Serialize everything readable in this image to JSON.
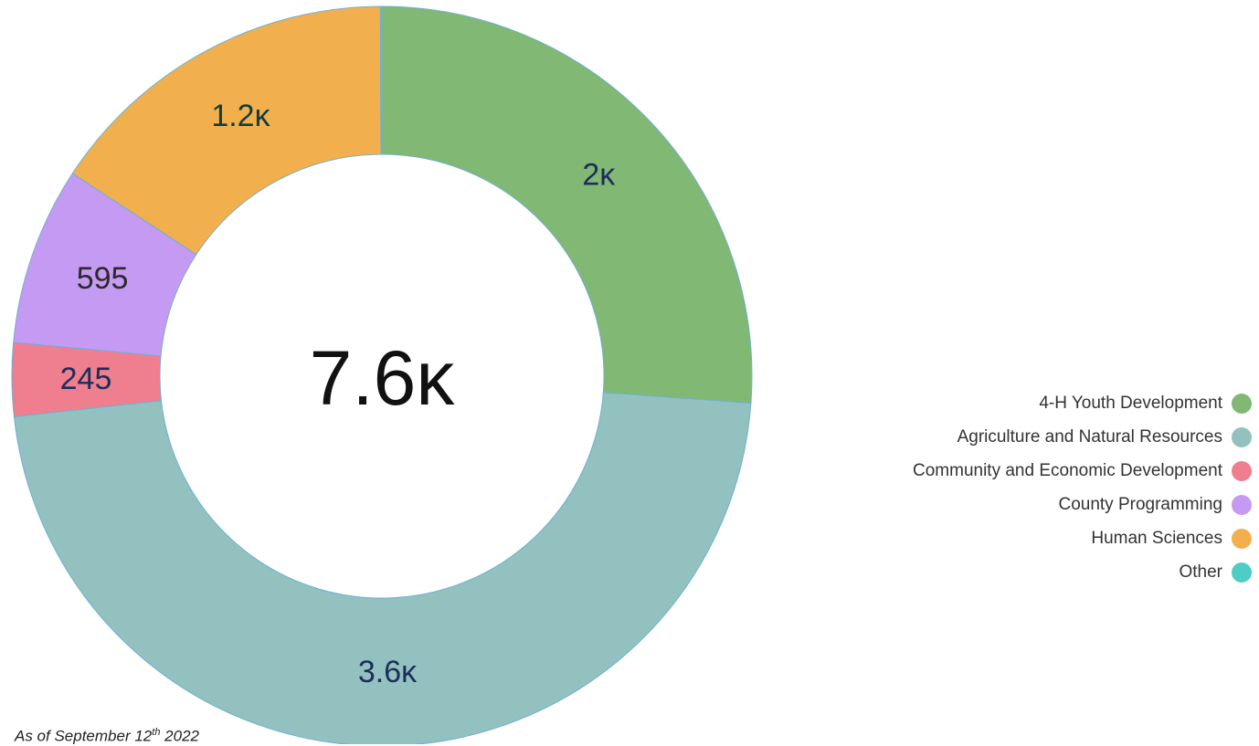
{
  "chart_data": {
    "type": "pie",
    "style": "donut",
    "center_label": "7.6ĸ",
    "slices": [
      {
        "name": "4-H Youth Development",
        "value": 2000,
        "label": "2ĸ",
        "color": "#80b874",
        "label_color": "#1c2e5a"
      },
      {
        "name": "Agriculture and Natural Resources",
        "value": 3600,
        "label": "3.6ĸ",
        "color": "#92c1c0",
        "label_color": "#1c2e5a"
      },
      {
        "name": "Community and Economic Development",
        "value": 245,
        "label": "245",
        "color": "#ef7e8f",
        "label_color": "#1c2e5a"
      },
      {
        "name": "County Programming",
        "value": 595,
        "label": "595",
        "color": "#c59af3",
        "label_color": "#2a2a2a"
      },
      {
        "name": "Human Sciences",
        "value": 1200,
        "label": "1.2ĸ",
        "color": "#f1b04d",
        "label_color": "#123c3a"
      },
      {
        "name": "Other",
        "value": 5,
        "label": "",
        "color": "#4ecdc4",
        "label_color": "#1c2e5a"
      }
    ],
    "legend_position": "right"
  },
  "footnote": {
    "prefix": "As of September 12",
    "superscript": "th",
    "suffix": " 2022"
  }
}
